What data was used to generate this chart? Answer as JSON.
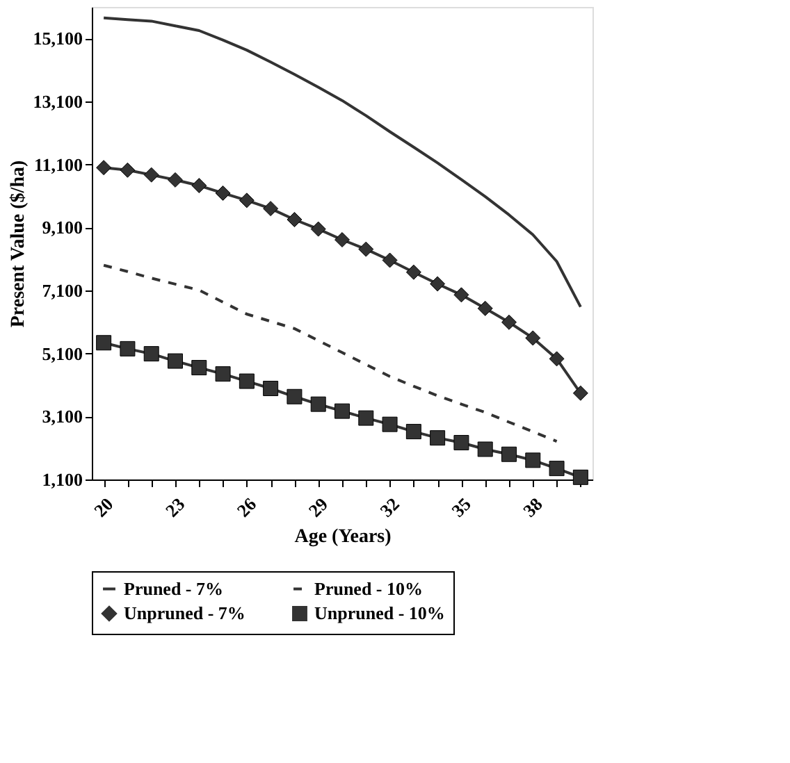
{
  "chart_data": {
    "type": "line",
    "xlabel": "Age (Years)",
    "ylabel": "Present Value ($/ha)",
    "categories": [
      "20",
      null,
      null,
      "23",
      null,
      null,
      "26",
      null,
      null,
      "29",
      null,
      null,
      "32",
      null,
      null,
      "35",
      null,
      null,
      "38",
      null,
      null
    ],
    "ylim": [
      1100,
      16100
    ],
    "yticks": [
      {
        "value": 1100,
        "label": "1,100"
      },
      {
        "value": 3100,
        "label": "3,100"
      },
      {
        "value": 5100,
        "label": "5,100"
      },
      {
        "value": 7100,
        "label": "7,100"
      },
      {
        "value": 9100,
        "label": "9,100"
      },
      {
        "value": 11100,
        "label": "11,100"
      },
      {
        "value": 13100,
        "label": "13,100"
      },
      {
        "value": 15100,
        "label": "15,100"
      }
    ],
    "grid": false,
    "legend": "bottom",
    "series": [
      {
        "name": "Pruned - 7%",
        "color": "#333333",
        "line_style": "solid",
        "marker": "none",
        "values": [
          15750,
          15700,
          15650,
          15500,
          15350,
          15050,
          14730,
          14350,
          13960,
          13550,
          13130,
          12650,
          12140,
          11650,
          11150,
          10620,
          10080,
          9500,
          8870,
          8020,
          6580
        ]
      },
      {
        "name": "Pruned - 10%",
        "color": "#333333",
        "line_style": "dashed",
        "marker": "none",
        "values": [
          7900,
          7700,
          7490,
          7300,
          7110,
          6730,
          6350,
          6120,
          5890,
          5510,
          5130,
          4750,
          4370,
          4060,
          3760,
          3490,
          3230,
          2920,
          2620,
          2310,
          null
        ]
      },
      {
        "name": "Unpruned - 7%",
        "color": "#333333",
        "line_style": "solid",
        "marker": "diamond",
        "values": [
          11000,
          10920,
          10770,
          10610,
          10430,
          10190,
          9960,
          9700,
          9350,
          9050,
          8710,
          8410,
          8060,
          7680,
          7310,
          6960,
          6530,
          6090,
          5590,
          4930,
          3840
        ]
      },
      {
        "name": "Unpruned - 10%",
        "color": "#333333",
        "line_style": "solid",
        "marker": "square",
        "values": [
          5440,
          5250,
          5090,
          4860,
          4650,
          4450,
          4220,
          3990,
          3730,
          3490,
          3270,
          3050,
          2850,
          2620,
          2420,
          2270,
          2060,
          1900,
          1710,
          1450,
          1170
        ]
      }
    ]
  }
}
